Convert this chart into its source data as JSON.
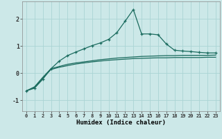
{
  "title": "",
  "xlabel": "Humidex (Indice chaleur)",
  "bg_color": "#cce8e8",
  "line_color": "#1a6b5e",
  "grid_color": "#aad4d4",
  "xlim": [
    -0.5,
    23.5
  ],
  "ylim": [
    -1.4,
    2.65
  ],
  "yticks": [
    -1,
    0,
    1,
    2
  ],
  "xticks": [
    0,
    1,
    2,
    3,
    4,
    5,
    6,
    7,
    8,
    9,
    10,
    11,
    12,
    13,
    14,
    15,
    16,
    17,
    18,
    19,
    20,
    21,
    22,
    23
  ],
  "line1_x": [
    0,
    1,
    2,
    3,
    4,
    5,
    6,
    7,
    8,
    9,
    10,
    11,
    12,
    13,
    14,
    15,
    16,
    17,
    18,
    19,
    20,
    21,
    22,
    23
  ],
  "line1_y": [
    -0.65,
    -0.55,
    -0.22,
    0.17,
    0.45,
    0.65,
    0.78,
    0.9,
    1.02,
    1.12,
    1.25,
    1.5,
    1.92,
    2.35,
    1.45,
    1.45,
    1.42,
    1.08,
    0.85,
    0.82,
    0.8,
    0.77,
    0.75,
    0.75
  ],
  "line2_x": [
    0,
    1,
    2,
    3,
    4,
    5,
    6,
    7,
    8,
    9,
    10,
    11,
    12,
    13,
    14,
    15,
    16,
    17,
    18,
    19,
    20,
    21,
    22,
    23
  ],
  "line2_y": [
    -0.65,
    -0.5,
    -0.15,
    0.17,
    0.25,
    0.33,
    0.38,
    0.42,
    0.46,
    0.5,
    0.53,
    0.56,
    0.58,
    0.6,
    0.62,
    0.63,
    0.64,
    0.65,
    0.65,
    0.66,
    0.66,
    0.66,
    0.66,
    0.67
  ],
  "line3_x": [
    0,
    1,
    2,
    3,
    4,
    5,
    6,
    7,
    8,
    9,
    10,
    11,
    12,
    13,
    14,
    15,
    16,
    17,
    18,
    19,
    20,
    21,
    22,
    23
  ],
  "line3_y": [
    -0.65,
    -0.52,
    -0.18,
    0.14,
    0.22,
    0.28,
    0.34,
    0.38,
    0.42,
    0.45,
    0.48,
    0.5,
    0.52,
    0.54,
    0.55,
    0.56,
    0.57,
    0.57,
    0.58,
    0.58,
    0.58,
    0.58,
    0.59,
    0.59
  ]
}
